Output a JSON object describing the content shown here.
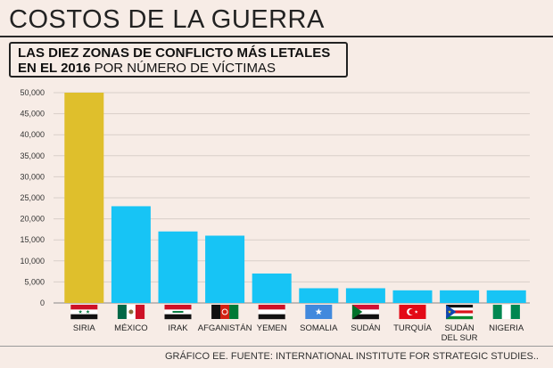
{
  "header": {
    "title": "COSTOS DE LA GUERRA",
    "subtitle_line1": "LAS DIEZ ZONAS DE CONFLICTO MÁS LETALES",
    "subtitle_line2_bold": "EN EL 2016",
    "subtitle_line2_rest": " POR NÚMERO DE VÍCTIMAS"
  },
  "footer": {
    "source": "GRÁFICO EE. FUENTE: INTERNATIONAL INSTITUTE FOR STRATEGIC STUDIES.."
  },
  "colors": {
    "background": "#f7ece6",
    "highlight_bar": "#dfbf2c",
    "bar": "#17c4f5",
    "grid": "#d9cfc9"
  },
  "chart_data": {
    "type": "bar",
    "categories": [
      "SIRIA",
      "MÉXICO",
      "IRAK",
      "AFGANISTÁN",
      "YEMEN",
      "SOMALIA",
      "SUDÁN",
      "TURQUÍA",
      "SUDÁN DEL SUR",
      "NIGERIA"
    ],
    "category_lines": [
      [
        "SIRIA"
      ],
      [
        "MÉXICO"
      ],
      [
        "IRAK"
      ],
      [
        "AFGANISTÁN"
      ],
      [
        "YEMEN"
      ],
      [
        "SOMALIA"
      ],
      [
        "SUDÁN"
      ],
      [
        "TURQUÍA"
      ],
      [
        "SUDÁN",
        "DEL SUR"
      ],
      [
        "NIGERIA"
      ]
    ],
    "values": [
      50000,
      23000,
      17000,
      16000,
      7000,
      3500,
      3500,
      3000,
      3000,
      3000
    ],
    "highlight_index": 0,
    "ylim": [
      0,
      50000
    ],
    "yticks": [
      0,
      5000,
      10000,
      15000,
      20000,
      25000,
      30000,
      35000,
      40000,
      45000,
      50000
    ],
    "ytick_labels": [
      "0",
      "5,000",
      "10,000",
      "15,000",
      "20,000",
      "25,000",
      "30,000",
      "35,000",
      "40,000",
      "45,000",
      "50,000"
    ],
    "grid": true,
    "flags": [
      "syria-flag",
      "mexico-flag",
      "iraq-flag",
      "afghanistan-flag",
      "yemen-flag",
      "somalia-flag",
      "sudan-flag",
      "turkey-flag",
      "south-sudan-flag",
      "nigeria-flag"
    ]
  }
}
